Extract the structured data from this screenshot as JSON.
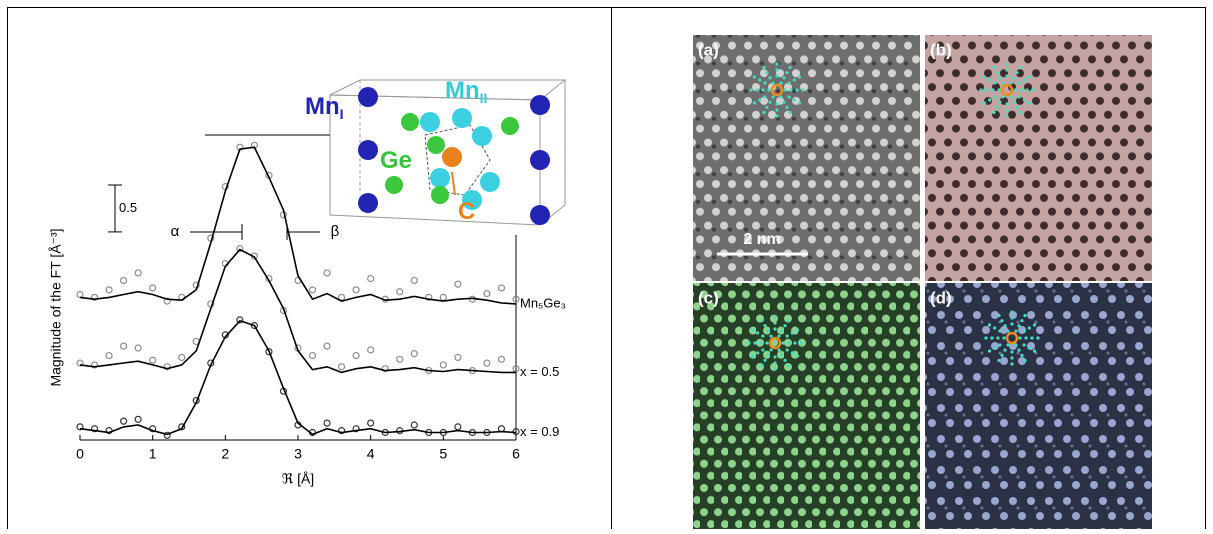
{
  "chart_data": {
    "type": "line",
    "x": [
      0,
      0.2,
      0.4,
      0.6,
      0.8,
      1.0,
      1.2,
      1.4,
      1.6,
      1.8,
      2.0,
      2.2,
      2.4,
      2.6,
      2.8,
      3.0,
      3.2,
      3.4,
      3.6,
      3.8,
      4.0,
      4.2,
      4.4,
      4.6,
      4.8,
      5.0,
      5.2,
      5.4,
      5.6,
      5.8,
      6.0
    ],
    "xlim": [
      0,
      6
    ],
    "xticks": [
      0,
      1,
      2,
      3,
      4,
      5,
      6
    ],
    "ylim": [
      0,
      3.25
    ],
    "xlabel": "ℜ [Å]",
    "ylabel": "Magnitude of the FT [Å⁻³]",
    "scale_bar": 0.5,
    "annotations": [
      "α",
      "β"
    ],
    "series": [
      {
        "name": "Mn₅Ge₃",
        "color": "#000000",
        "marker_color": "#8c8c8c",
        "values": [
          1.52,
          1.5,
          1.52,
          1.55,
          1.58,
          1.55,
          1.5,
          1.49,
          1.6,
          2.1,
          2.65,
          3.1,
          3.12,
          2.8,
          2.45,
          1.75,
          1.5,
          1.56,
          1.48,
          1.52,
          1.55,
          1.49,
          1.5,
          1.53,
          1.5,
          1.48,
          1.5,
          1.51,
          1.49,
          1.46,
          1.45
        ],
        "measured": [
          1.55,
          1.52,
          1.6,
          1.7,
          1.78,
          1.62,
          1.48,
          1.52,
          1.65,
          2.15,
          2.7,
          3.12,
          3.14,
          2.82,
          2.4,
          1.7,
          1.6,
          1.78,
          1.52,
          1.6,
          1.72,
          1.5,
          1.58,
          1.7,
          1.52,
          1.52,
          1.66,
          1.5,
          1.56,
          1.62,
          1.5
        ]
      },
      {
        "name": "x = 0.5",
        "color": "#000000",
        "marker_color": "#8c8c8c",
        "values": [
          0.8,
          0.78,
          0.8,
          0.82,
          0.84,
          0.8,
          0.76,
          0.8,
          0.95,
          1.4,
          1.85,
          2.03,
          1.95,
          1.7,
          1.4,
          0.95,
          0.75,
          0.78,
          0.72,
          0.76,
          0.78,
          0.74,
          0.75,
          0.77,
          0.74,
          0.73,
          0.75,
          0.74,
          0.73,
          0.72,
          0.72
        ],
        "measured": [
          0.82,
          0.8,
          0.9,
          1.0,
          0.98,
          0.85,
          0.78,
          0.88,
          1.05,
          1.45,
          1.88,
          2.04,
          1.96,
          1.72,
          1.38,
          0.98,
          0.9,
          1.0,
          0.78,
          0.9,
          0.96,
          0.76,
          0.86,
          0.92,
          0.74,
          0.8,
          0.88,
          0.74,
          0.82,
          0.86,
          0.76
        ]
      },
      {
        "name": "x = 0.9",
        "color": "#000000",
        "marker_color": "#333333",
        "values": [
          0.12,
          0.1,
          0.08,
          0.14,
          0.16,
          0.1,
          0.06,
          0.12,
          0.4,
          0.8,
          1.1,
          1.27,
          1.22,
          0.95,
          0.55,
          0.18,
          0.06,
          0.12,
          0.08,
          0.1,
          0.12,
          0.08,
          0.09,
          0.11,
          0.08,
          0.08,
          0.1,
          0.08,
          0.08,
          0.09,
          0.08
        ],
        "measured": [
          0.14,
          0.12,
          0.1,
          0.2,
          0.22,
          0.12,
          0.05,
          0.14,
          0.42,
          0.82,
          1.12,
          1.28,
          1.22,
          0.94,
          0.52,
          0.16,
          0.08,
          0.18,
          0.1,
          0.12,
          0.18,
          0.08,
          0.1,
          0.16,
          0.08,
          0.08,
          0.14,
          0.08,
          0.08,
          0.12,
          0.09
        ]
      }
    ]
  },
  "structure": {
    "labels": [
      {
        "text": "Mn",
        "sub": "I",
        "color": "#2323b4"
      },
      {
        "text": "Mn",
        "sub": "II",
        "color": "#38c8d8"
      },
      {
        "text": "Ge",
        "color": "#36c43a"
      },
      {
        "text": "C",
        "color": "#e8821c"
      }
    ]
  },
  "micrographs": {
    "panels": [
      "(a)",
      "(b)",
      "(c)",
      "(d)"
    ],
    "scale_bar": "2 nm"
  }
}
